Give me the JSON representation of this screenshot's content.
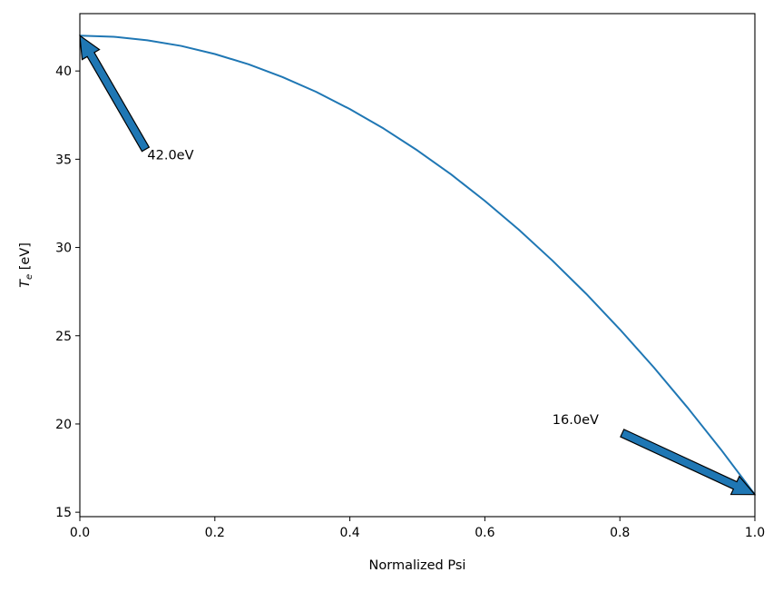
{
  "chart_data": {
    "type": "line",
    "title": "",
    "xlabel": "Normalized Psi",
    "ylabel": {
      "symbol": "T",
      "subscript": "e",
      "unit": " [eV]"
    },
    "xlim": [
      0.0,
      1.0
    ],
    "ylim": [
      14.75,
      43.25
    ],
    "xticks": [
      0.0,
      0.2,
      0.4,
      0.6,
      0.8,
      1.0
    ],
    "xtick_labels": [
      "0.0",
      "0.2",
      "0.4",
      "0.6",
      "0.8",
      "1.0"
    ],
    "yticks": [
      15,
      20,
      25,
      30,
      35,
      40
    ],
    "ytick_labels": [
      "15",
      "20",
      "25",
      "30",
      "35",
      "40"
    ],
    "grid": false,
    "series": [
      {
        "color": "#1f77b4",
        "x": [
          0.0,
          0.05,
          0.1,
          0.15,
          0.2,
          0.25,
          0.3,
          0.35,
          0.4,
          0.45,
          0.5,
          0.55,
          0.6,
          0.65,
          0.7,
          0.75,
          0.8,
          0.85,
          0.9,
          0.95,
          1.0
        ],
        "y": [
          42.0,
          41.94,
          41.74,
          41.42,
          40.96,
          40.38,
          39.66,
          38.82,
          37.84,
          36.74,
          35.5,
          34.14,
          32.64,
          31.02,
          29.26,
          27.38,
          25.36,
          23.22,
          20.94,
          18.54,
          16.0
        ]
      }
    ],
    "annotations": [
      {
        "text": "42.0eV",
        "point": [
          0.0,
          42.0
        ],
        "text_at": [
          0.1,
          35.0
        ],
        "color": "#1f77b4"
      },
      {
        "text": "16.0eV",
        "point": [
          1.0,
          16.0
        ],
        "text_at": [
          0.7,
          20.0
        ],
        "color": "#1f77b4"
      }
    ]
  }
}
